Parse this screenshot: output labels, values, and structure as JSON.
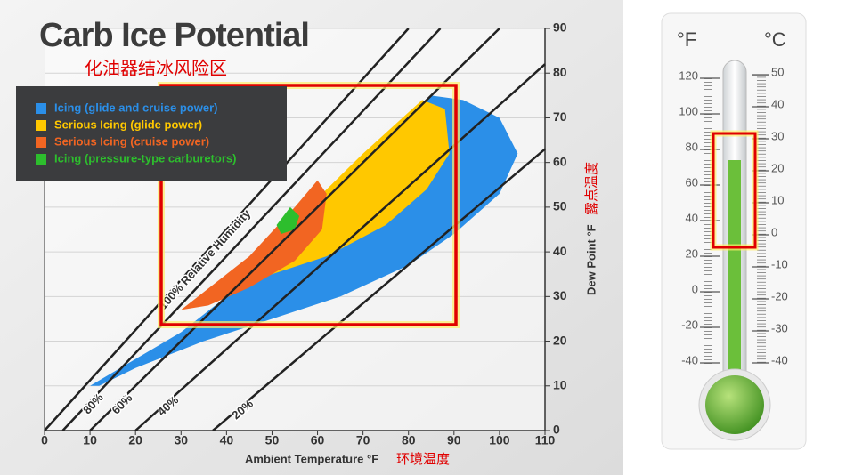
{
  "chart_data": [
    {
      "type": "region",
      "title": "Carb Ice Potential",
      "subtitle": "化油器结冰风险区",
      "x_label": "Ambient Temperature °F",
      "x_label_cn": "环境温度",
      "y_label": "Dew Point °F",
      "y_label_cn": "露点温度",
      "xlim": [
        0,
        110
      ],
      "xticks": [
        0,
        10,
        20,
        30,
        40,
        50,
        60,
        70,
        80,
        90,
        100,
        110
      ],
      "ylim": [
        0,
        90
      ],
      "yticks": [
        0,
        10,
        20,
        30,
        40,
        50,
        60,
        70,
        80,
        90
      ],
      "grid": true,
      "series": [
        {
          "name": "Icing (glide and cruise power)",
          "color": "#2b8fe8",
          "x": [
            10,
            30,
            50,
            70,
            80,
            85,
            92,
            100,
            104,
            100,
            90,
            80,
            65,
            50,
            35,
            20,
            12
          ],
          "values": [
            10,
            22,
            38,
            55,
            68,
            75,
            74,
            70,
            62,
            53,
            44,
            37,
            30,
            25,
            20,
            14,
            10
          ]
        },
        {
          "name": "Serious Icing (glide power)",
          "color": "#ffc800",
          "x": [
            30,
            50,
            70,
            83,
            88,
            89,
            84,
            75,
            62,
            50,
            38
          ],
          "values": [
            27,
            42,
            62,
            74,
            72,
            62,
            54,
            46,
            39,
            35,
            30
          ]
        },
        {
          "name": "Serious Icing (cruise power)",
          "color": "#f26522",
          "x": [
            30,
            45,
            55,
            60,
            62,
            61,
            55,
            45,
            36
          ],
          "values": [
            27,
            39,
            50,
            56,
            53,
            45,
            38,
            32,
            28
          ]
        },
        {
          "name": "Icing (pressure-type carburetors)",
          "color": "#2dbe2d",
          "x": [
            51,
            54,
            56,
            55,
            52
          ],
          "values": [
            46,
            50,
            48,
            45,
            44
          ]
        }
      ],
      "rh_lines": [
        {
          "name": "100% Relative Humidity",
          "x": [
            0,
            80
          ],
          "values": [
            0,
            90
          ]
        },
        {
          "name": "80%",
          "x": [
            4,
            87
          ],
          "values": [
            0,
            90
          ]
        },
        {
          "name": "60%",
          "x": [
            10,
            100
          ],
          "values": [
            0,
            90
          ]
        },
        {
          "name": "40%",
          "x": [
            20,
            110
          ],
          "values": [
            0,
            82
          ]
        },
        {
          "name": "20%",
          "x": [
            37,
            110
          ],
          "values": [
            0,
            63
          ]
        }
      ]
    },
    {
      "type": "thermometer",
      "y_label": "°F",
      "y2_label": "°C",
      "ylim": [
        -40,
        120
      ],
      "yticks": [
        -40,
        -20,
        0,
        20,
        40,
        60,
        80,
        100,
        120
      ],
      "y2lim": [
        -40,
        48.9
      ],
      "y2ticks": [
        -40,
        -30,
        -20,
        -10,
        0,
        10,
        20,
        30,
        40,
        50
      ],
      "value": 74,
      "color": "#6bbf3a"
    }
  ]
}
